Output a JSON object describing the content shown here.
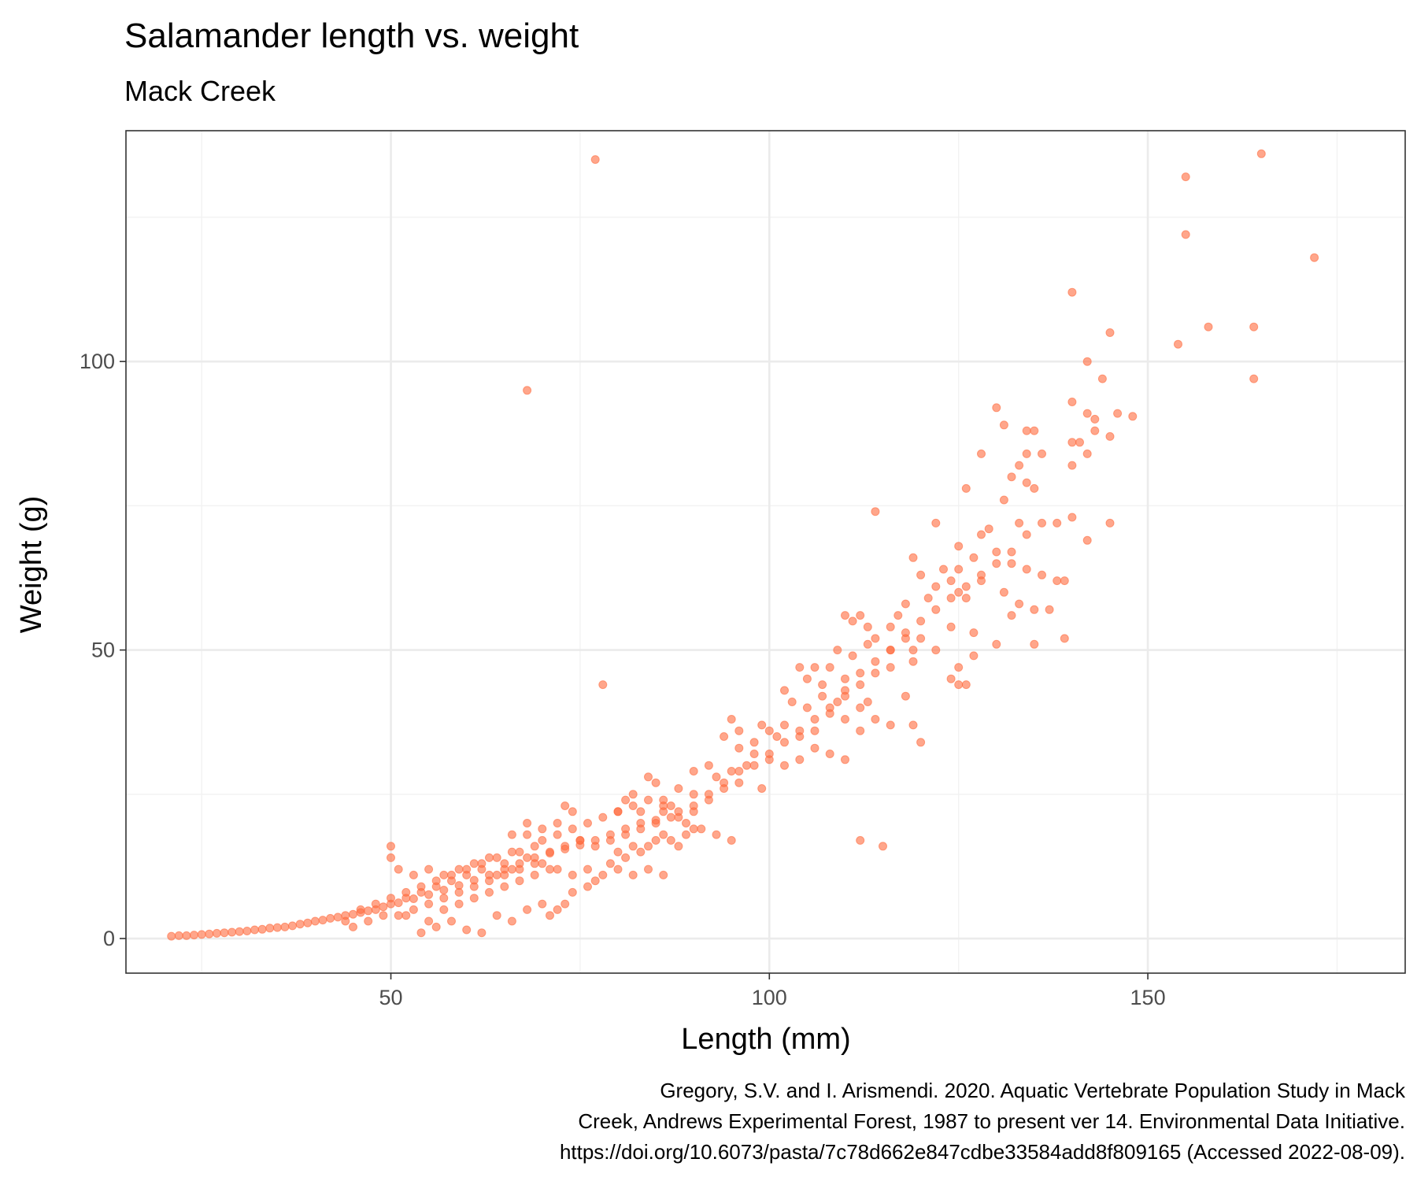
{
  "chart_data": {
    "type": "scatter",
    "title": "Salamander length vs. weight",
    "subtitle": "Mack Creek",
    "xlabel": "Length (mm)",
    "ylabel": "Weight (g)",
    "caption": [
      "Gregory, S.V. and I. Arismendi. 2020. Aquatic Vertebrate Population Study in Mack",
      "Creek, Andrews Experimental Forest, 1987 to present ver 14. Environmental Data Initiative.",
      "https://doi.org/10.6073/pasta/7c78d662e847cdbe33584add8f809165 (Accessed 2022-08-09)."
    ],
    "xlim": [
      15,
      184
    ],
    "ylim": [
      -6,
      140
    ],
    "x_ticks": [
      50,
      100,
      150
    ],
    "y_ticks": [
      0,
      50,
      100
    ],
    "grid": true,
    "point_color": "#FF6A3D",
    "point_opacity": 0.6,
    "points": [
      [
        77,
        135
      ],
      [
        165,
        136
      ],
      [
        155,
        132
      ],
      [
        155,
        122
      ],
      [
        172,
        118
      ],
      [
        140,
        112
      ],
      [
        158,
        106
      ],
      [
        164,
        106
      ],
      [
        145,
        105
      ],
      [
        154,
        103
      ],
      [
        142,
        100
      ],
      [
        144,
        97
      ],
      [
        164,
        97
      ],
      [
        68,
        95
      ],
      [
        140,
        93
      ],
      [
        130,
        92
      ],
      [
        146,
        91
      ],
      [
        148,
        90.5
      ],
      [
        143,
        90
      ],
      [
        142,
        91
      ],
      [
        131,
        89
      ],
      [
        134,
        88
      ],
      [
        135,
        88
      ],
      [
        143,
        88
      ],
      [
        140,
        86
      ],
      [
        141,
        86
      ],
      [
        145,
        87
      ],
      [
        134,
        84
      ],
      [
        136,
        84
      ],
      [
        142,
        84
      ],
      [
        128,
        84
      ],
      [
        133,
        82
      ],
      [
        140,
        82
      ],
      [
        132,
        80
      ],
      [
        134,
        79
      ],
      [
        135,
        78
      ],
      [
        126,
        78
      ],
      [
        131,
        76
      ],
      [
        122,
        72
      ],
      [
        133,
        72
      ],
      [
        138,
        72
      ],
      [
        145,
        72
      ],
      [
        114,
        74
      ],
      [
        129,
        71
      ],
      [
        128,
        70
      ],
      [
        125,
        68
      ],
      [
        140,
        73
      ],
      [
        142,
        69
      ],
      [
        127,
        66
      ],
      [
        130,
        67
      ],
      [
        132,
        65
      ],
      [
        134,
        64
      ],
      [
        136,
        63
      ],
      [
        125,
        64
      ],
      [
        123,
        64
      ],
      [
        119,
        66
      ],
      [
        120,
        63
      ],
      [
        122,
        61
      ],
      [
        124,
        62
      ],
      [
        125,
        60
      ],
      [
        128,
        62
      ],
      [
        131,
        60
      ],
      [
        133,
        58
      ],
      [
        135,
        57
      ],
      [
        138,
        62
      ],
      [
        139,
        62
      ],
      [
        137,
        57
      ],
      [
        132,
        56
      ],
      [
        126,
        59
      ],
      [
        121,
        59
      ],
      [
        118,
        58
      ],
      [
        117,
        56
      ],
      [
        116,
        54
      ],
      [
        113,
        54
      ],
      [
        110,
        56
      ],
      [
        112,
        56
      ],
      [
        111,
        55
      ],
      [
        114,
        52
      ],
      [
        120,
        52
      ],
      [
        124,
        54
      ],
      [
        127,
        53
      ],
      [
        130,
        51
      ],
      [
        135,
        51
      ],
      [
        139,
        52
      ],
      [
        118,
        52
      ],
      [
        119,
        50
      ],
      [
        116,
        50
      ],
      [
        113,
        51
      ],
      [
        111,
        49
      ],
      [
        109,
        50
      ],
      [
        108,
        47
      ],
      [
        106,
        47
      ],
      [
        104,
        47
      ],
      [
        107,
        44
      ],
      [
        105,
        45
      ],
      [
        110,
        45
      ],
      [
        112,
        44
      ],
      [
        114,
        46
      ],
      [
        116,
        47
      ],
      [
        119,
        48
      ],
      [
        122,
        50
      ],
      [
        125,
        47
      ],
      [
        127,
        49
      ],
      [
        125,
        44
      ],
      [
        126,
        44
      ],
      [
        124,
        45
      ],
      [
        102,
        43
      ],
      [
        103,
        41
      ],
      [
        105,
        40
      ],
      [
        107,
        42
      ],
      [
        109,
        41
      ],
      [
        110,
        43
      ],
      [
        112,
        40
      ],
      [
        113,
        41
      ],
      [
        99,
        37
      ],
      [
        100,
        36
      ],
      [
        101,
        35
      ],
      [
        102,
        37
      ],
      [
        104,
        36
      ],
      [
        106,
        38
      ],
      [
        108,
        39
      ],
      [
        110,
        38
      ],
      [
        112,
        36
      ],
      [
        114,
        38
      ],
      [
        116,
        37
      ],
      [
        118,
        42
      ],
      [
        119,
        37
      ],
      [
        120,
        34
      ],
      [
        96,
        33
      ],
      [
        98,
        32
      ],
      [
        100,
        31
      ],
      [
        102,
        30
      ],
      [
        104,
        31
      ],
      [
        106,
        33
      ],
      [
        108,
        32
      ],
      [
        110,
        31
      ],
      [
        94,
        35
      ],
      [
        95,
        38
      ],
      [
        96,
        36
      ],
      [
        98,
        34
      ],
      [
        97,
        30
      ],
      [
        92,
        30
      ],
      [
        93,
        28
      ],
      [
        95,
        29
      ],
      [
        96,
        27
      ],
      [
        99,
        26
      ],
      [
        90,
        29
      ],
      [
        88,
        26
      ],
      [
        86,
        24
      ],
      [
        85,
        27
      ],
      [
        84,
        28
      ],
      [
        82,
        25
      ],
      [
        80,
        22
      ],
      [
        81,
        24
      ],
      [
        83,
        22
      ],
      [
        86,
        22
      ],
      [
        88,
        21
      ],
      [
        90,
        22
      ],
      [
        92,
        24
      ],
      [
        94,
        26
      ],
      [
        90,
        25
      ],
      [
        87,
        23
      ],
      [
        73,
        23
      ],
      [
        74,
        22
      ],
      [
        68,
        18
      ],
      [
        70,
        19
      ],
      [
        72,
        18
      ],
      [
        75,
        17
      ],
      [
        77,
        16
      ],
      [
        79,
        17
      ],
      [
        81,
        18
      ],
      [
        83,
        19
      ],
      [
        85,
        20
      ],
      [
        87,
        21
      ],
      [
        89,
        20
      ],
      [
        91,
        19
      ],
      [
        93,
        18
      ],
      [
        95,
        17
      ],
      [
        112,
        17
      ],
      [
        115,
        16
      ],
      [
        78,
        44
      ],
      [
        50,
        16
      ],
      [
        50,
        14
      ],
      [
        51,
        12
      ],
      [
        53,
        11
      ],
      [
        55,
        12
      ],
      [
        57,
        11
      ],
      [
        59,
        12
      ],
      [
        61,
        13
      ],
      [
        63,
        14
      ],
      [
        65,
        13
      ],
      [
        67,
        15
      ],
      [
        69,
        16
      ],
      [
        71,
        15
      ],
      [
        73,
        16
      ],
      [
        75,
        17
      ],
      [
        68,
        14
      ],
      [
        70,
        13
      ],
      [
        72,
        12
      ],
      [
        74,
        11
      ],
      [
        76,
        12
      ],
      [
        78,
        11
      ],
      [
        80,
        12
      ],
      [
        82,
        11
      ],
      [
        84,
        12
      ],
      [
        86,
        11
      ],
      [
        76,
        9
      ],
      [
        77,
        10
      ],
      [
        74,
        8
      ],
      [
        73,
        6
      ],
      [
        72,
        5
      ],
      [
        71,
        4
      ],
      [
        79,
        13
      ],
      [
        80,
        15
      ],
      [
        81,
        14
      ],
      [
        82,
        16
      ],
      [
        83,
        15
      ],
      [
        84,
        16
      ],
      [
        85,
        17
      ],
      [
        86,
        18
      ],
      [
        87,
        17
      ],
      [
        88,
        16
      ],
      [
        89,
        18
      ],
      [
        90,
        19
      ],
      [
        60,
        11
      ],
      [
        62,
        12
      ],
      [
        64,
        11
      ],
      [
        66,
        12
      ],
      [
        58,
        10
      ],
      [
        56,
        9
      ],
      [
        54,
        8
      ],
      [
        52,
        7
      ],
      [
        50,
        6
      ],
      [
        48,
        5
      ],
      [
        46,
        4.5
      ],
      [
        44,
        4
      ],
      [
        42,
        3.5
      ],
      [
        40,
        3
      ],
      [
        38,
        2.5
      ],
      [
        36,
        2
      ],
      [
        34,
        1.8
      ],
      [
        32,
        1.5
      ],
      [
        30,
        1.2
      ],
      [
        28,
        1
      ],
      [
        26,
        0.8
      ],
      [
        24,
        0.6
      ],
      [
        22,
        0.5
      ],
      [
        21,
        0.4
      ],
      [
        23,
        0.5
      ],
      [
        25,
        0.7
      ],
      [
        27,
        0.9
      ],
      [
        29,
        1.1
      ],
      [
        31,
        1.3
      ],
      [
        33,
        1.6
      ],
      [
        35,
        1.9
      ],
      [
        37,
        2.2
      ],
      [
        39,
        2.7
      ],
      [
        41,
        3.2
      ],
      [
        43,
        3.7
      ],
      [
        45,
        4.2
      ],
      [
        47,
        4.8
      ],
      [
        49,
        5.5
      ],
      [
        51,
        6.2
      ],
      [
        53,
        6.9
      ],
      [
        55,
        7.6
      ],
      [
        57,
        8.4
      ],
      [
        59,
        9.2
      ],
      [
        61,
        10.1
      ],
      [
        63,
        11
      ],
      [
        65,
        12
      ],
      [
        67,
        13
      ],
      [
        69,
        14
      ],
      [
        71,
        14.8
      ],
      [
        73,
        15.5
      ],
      [
        75,
        16.2
      ],
      [
        77,
        17
      ],
      [
        79,
        18
      ],
      [
        81,
        19
      ],
      [
        83,
        20
      ],
      [
        85,
        20.5
      ],
      [
        51,
        4
      ],
      [
        54,
        1
      ],
      [
        56,
        2
      ],
      [
        58,
        3
      ],
      [
        60,
        1.5
      ],
      [
        62,
        1
      ],
      [
        64,
        4
      ],
      [
        66,
        3
      ],
      [
        68,
        5
      ],
      [
        70,
        6
      ],
      [
        52,
        4
      ],
      [
        55,
        3
      ],
      [
        57,
        5
      ],
      [
        59,
        6
      ],
      [
        61,
        7
      ],
      [
        63,
        8
      ],
      [
        65,
        9
      ],
      [
        67,
        10
      ],
      [
        69,
        11
      ],
      [
        71,
        12
      ],
      [
        66,
        18
      ],
      [
        68,
        20
      ],
      [
        70,
        17
      ],
      [
        72,
        20
      ],
      [
        74,
        19
      ],
      [
        76,
        20
      ],
      [
        78,
        21
      ],
      [
        80,
        22
      ],
      [
        82,
        23
      ],
      [
        84,
        24
      ],
      [
        86,
        23
      ],
      [
        88,
        22
      ],
      [
        90,
        23
      ],
      [
        92,
        25
      ],
      [
        94,
        27
      ],
      [
        96,
        29
      ],
      [
        98,
        30
      ],
      [
        100,
        32
      ],
      [
        102,
        34
      ],
      [
        104,
        35
      ],
      [
        106,
        36
      ],
      [
        108,
        40
      ],
      [
        110,
        42
      ],
      [
        112,
        46
      ],
      [
        114,
        48
      ],
      [
        116,
        50
      ],
      [
        118,
        53
      ],
      [
        120,
        55
      ],
      [
        122,
        57
      ],
      [
        124,
        59
      ],
      [
        126,
        61
      ],
      [
        128,
        63
      ],
      [
        130,
        65
      ],
      [
        132,
        67
      ],
      [
        134,
        70
      ],
      [
        136,
        72
      ],
      [
        44,
        3
      ],
      [
        46,
        5
      ],
      [
        48,
        6
      ],
      [
        50,
        7
      ],
      [
        52,
        8
      ],
      [
        54,
        9
      ],
      [
        56,
        10
      ],
      [
        58,
        11
      ],
      [
        60,
        12
      ],
      [
        62,
        13
      ],
      [
        64,
        14
      ],
      [
        66,
        15
      ],
      [
        45,
        2
      ],
      [
        47,
        3
      ],
      [
        49,
        4
      ],
      [
        53,
        5
      ],
      [
        55,
        6
      ],
      [
        57,
        7
      ],
      [
        59,
        8
      ],
      [
        61,
        9
      ],
      [
        63,
        10
      ],
      [
        65,
        11
      ],
      [
        67,
        12
      ],
      [
        69,
        13
      ]
    ]
  }
}
